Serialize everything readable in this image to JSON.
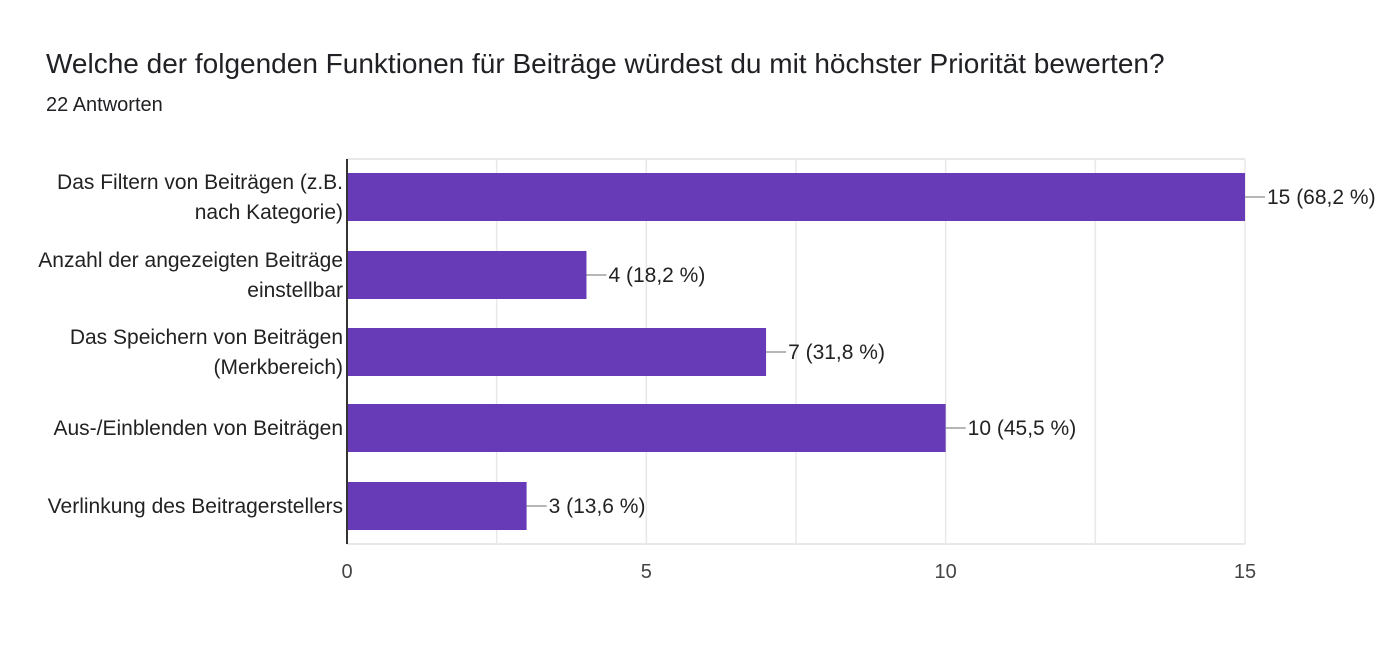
{
  "header": {
    "title": "Welche der folgenden Funktionen für Beiträge  würdest du mit höchster Priorität bewerten?",
    "subtitle": "22 Antworten"
  },
  "colors": {
    "bar": "#673ab7",
    "grid": "#e8e8e8",
    "axis": "#333333",
    "connector": "#9e9e9e"
  },
  "chart_data": {
    "type": "bar",
    "orientation": "horizontal",
    "categories": [
      [
        "Das Filtern von Beiträgen (z.B.",
        "nach Kategorie)"
      ],
      [
        "Anzahl der angezeigten Beiträge",
        "einstellbar"
      ],
      [
        "Das Speichern von Beiträgen",
        "(Merkbereich)"
      ],
      [
        "Aus-/Einblenden von Beiträgen"
      ],
      [
        "Verlinkung des Beitragerstellers"
      ]
    ],
    "values": [
      15,
      4,
      7,
      10,
      3
    ],
    "data_labels": [
      "15 (68,2 %)",
      "4 (18,2 %)",
      "7 (31,8 %)",
      "10 (45,5 %)",
      "3 (13,6 %)"
    ],
    "xlim": [
      0,
      15
    ],
    "xticks": [
      0,
      5,
      10,
      15
    ],
    "grid": true,
    "legend": "none"
  }
}
